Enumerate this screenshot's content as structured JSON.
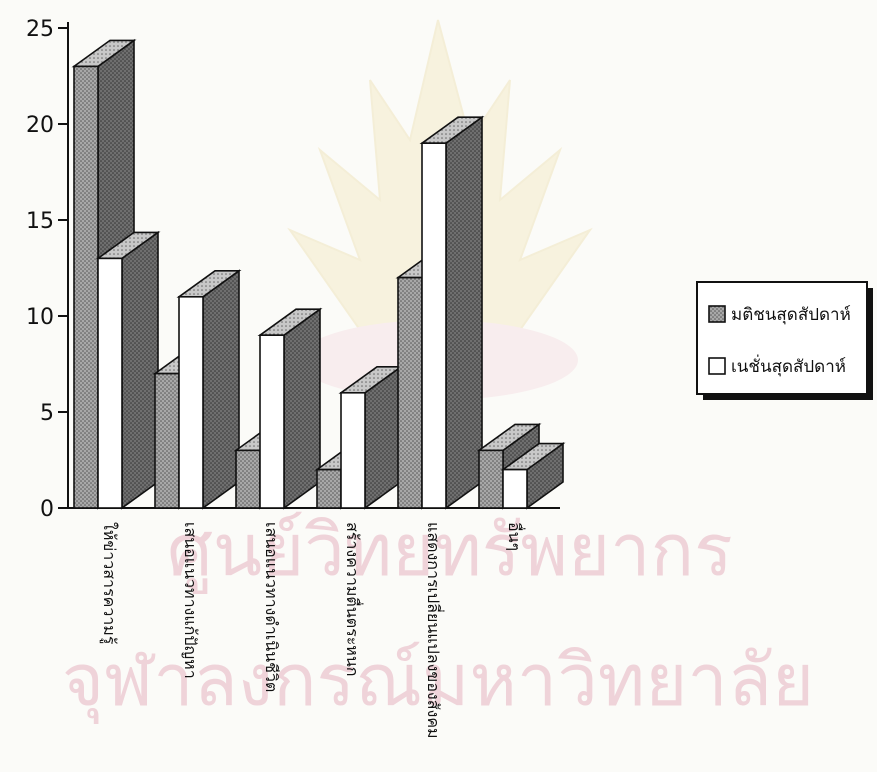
{
  "chart_data": {
    "type": "bar",
    "categories": [
      "ให้ข่าวสารความรู้",
      "เสนอแนวทางแก้ปัญหา",
      "เสนอแนวทางดำเนินชีวิต",
      "สร้างความตื่นตระหนก",
      "แสดงการเปลี่ยนแปลงของสังคม",
      "อื่นๆ"
    ],
    "series": [
      {
        "name": "มติชนสุดสัปดาห์",
        "values": [
          23,
          7,
          3,
          2,
          12,
          3
        ],
        "color": "#8c8c8c"
      },
      {
        "name": "เนชั่นสุดสัปดาห์",
        "values": [
          13,
          11,
          9,
          6,
          19,
          2
        ],
        "color": "#ffffff"
      }
    ],
    "yticks": [
      "0",
      "5",
      "10",
      "15",
      "20",
      "25"
    ],
    "ylim": [
      0,
      25
    ],
    "title": "",
    "xlabel": "",
    "ylabel": "",
    "grid": false,
    "legend_position": "right"
  },
  "watermark": {
    "line1": "ศูนย์วิทยทรัพยากร",
    "line2": "จุฬาลงกรณ์มหาวิทยาลัย",
    "color": "#e8cfd4"
  }
}
